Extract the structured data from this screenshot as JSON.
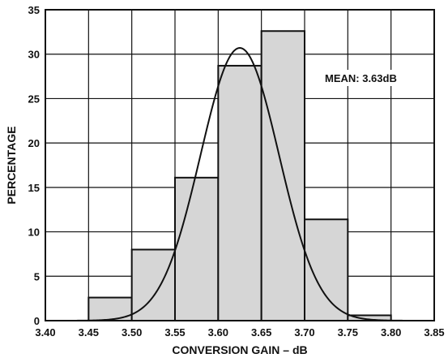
{
  "chart_data": {
    "type": "bar",
    "title": "",
    "xlabel": "CONVERSION GAIN – dB",
    "ylabel": "PERCENTAGE",
    "xlim": [
      3.4,
      3.85
    ],
    "ylim": [
      0,
      35
    ],
    "x_ticks": [
      "3.40",
      "3.45",
      "3.50",
      "3.55",
      "3.60",
      "3.65",
      "3.70",
      "3.75",
      "3.80",
      "3.85"
    ],
    "y_ticks": [
      "0",
      "5",
      "10",
      "15",
      "20",
      "25",
      "30",
      "35"
    ],
    "grid": true,
    "bins": [
      {
        "x0": 3.45,
        "x1": 3.5,
        "value": 2.6
      },
      {
        "x0": 3.5,
        "x1": 3.55,
        "value": 8.0
      },
      {
        "x0": 3.55,
        "x1": 3.6,
        "value": 16.1
      },
      {
        "x0": 3.6,
        "x1": 3.65,
        "value": 28.7
      },
      {
        "x0": 3.65,
        "x1": 3.7,
        "value": 32.6
      },
      {
        "x0": 3.7,
        "x1": 3.75,
        "value": 11.4
      },
      {
        "x0": 3.75,
        "x1": 3.8,
        "value": 0.6
      }
    ],
    "fit_curve": {
      "type": "normal",
      "mean": 3.625,
      "sigma": 0.0455,
      "peak": 30.7
    },
    "annotation": "MEAN: 3.63dB",
    "colors": {
      "bar_fill": "#d6d6d6",
      "stroke": "#111111",
      "grid": "#111111"
    }
  }
}
